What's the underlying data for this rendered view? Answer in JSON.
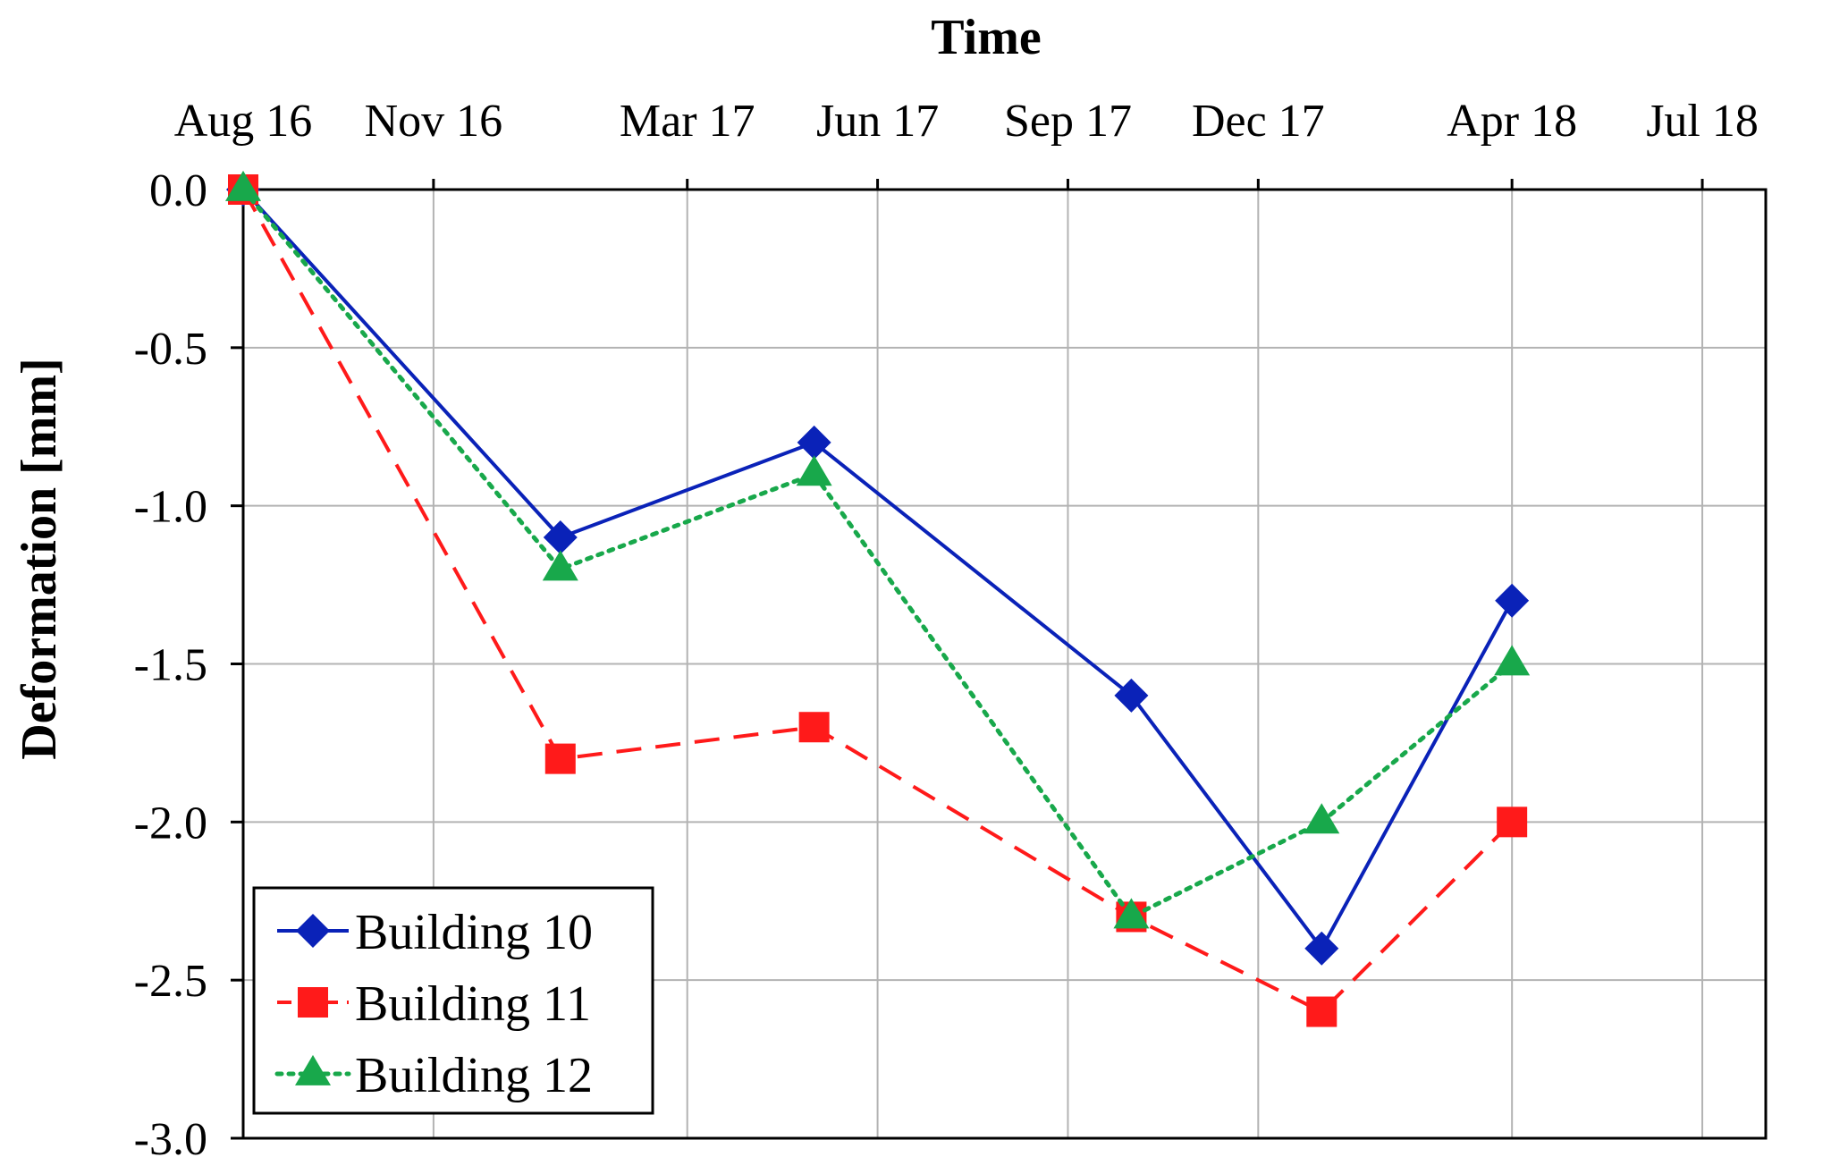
{
  "chart_data": {
    "type": "line",
    "xlabel": "Time",
    "ylabel": "Deformation [mm]",
    "x_ticks": [
      "Aug 16",
      "Nov 16",
      "Mar 17",
      "Jun 17",
      "Sep 17",
      "Dec 17",
      "Apr 18",
      "Jul 18"
    ],
    "y_ticks": [
      "0.0",
      "-0.5",
      "-1.0",
      "-1.5",
      "-2.0",
      "-2.5",
      "-3.0"
    ],
    "ylim": [
      -3.0,
      0.0
    ],
    "xlim_months": [
      0,
      24
    ],
    "grid": true,
    "legend_position": "bottom-left",
    "x": [
      "Aug 16",
      "Jan 17",
      "May 17",
      "Oct 17",
      "Jan 18",
      "Apr 18"
    ],
    "series": [
      {
        "name": "Building 10",
        "values": [
          0.0,
          -1.1,
          -0.8,
          -1.6,
          -2.4,
          -1.3
        ],
        "color": "#0A22B8",
        "line_style": "solid",
        "marker": "diamond"
      },
      {
        "name": "Building 11",
        "values": [
          0.0,
          -1.8,
          -1.7,
          -2.3,
          -2.6,
          -2.0
        ],
        "color": "#FF1A1A",
        "line_style": "dashed",
        "marker": "square"
      },
      {
        "name": "Building 12",
        "values": [
          0.0,
          -1.2,
          -0.9,
          -2.3,
          -2.0,
          -1.5
        ],
        "color": "#18A84B",
        "line_style": "dotted",
        "marker": "triangle"
      }
    ]
  }
}
